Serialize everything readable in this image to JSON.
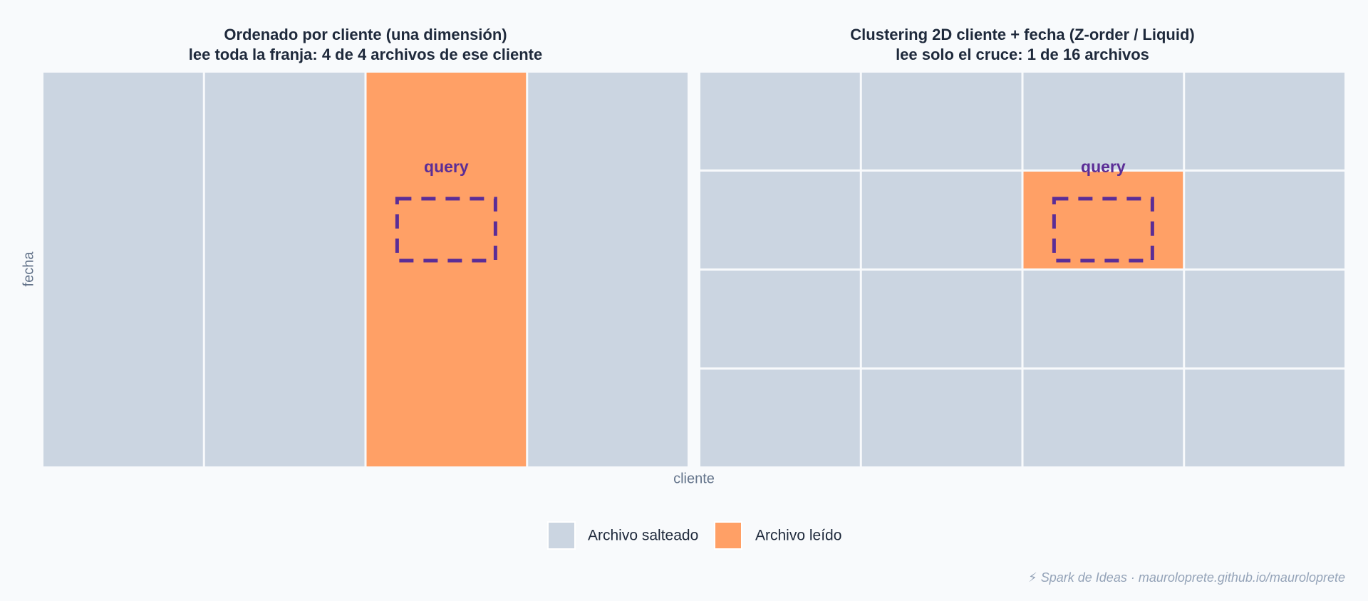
{
  "panels": [
    {
      "title": "Ordenado por cliente (una dimensión)",
      "subtitle": "lee toda la franja: 4 de 4 archivos de ese cliente",
      "query_label": "query"
    },
    {
      "title": "Clustering 2D cliente + fecha (Z-order / Liquid)",
      "subtitle": "lee solo el cruce: 1 de 16 archivos",
      "query_label": "query"
    }
  ],
  "axes": {
    "y_label": "fecha",
    "x_label": "cliente"
  },
  "legend": [
    {
      "label": "Archivo salteado",
      "color": "#cbd5e1"
    },
    {
      "label": "Archivo leído",
      "color": "#ffa066"
    }
  ],
  "footer": "⚡ Spark de Ideas · mauroloprete.github.io/mauroloprete"
}
